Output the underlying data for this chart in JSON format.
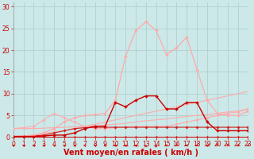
{
  "background_color": "#cce8e8",
  "grid_color": "#aacccc",
  "xlabel": "Vent moyen/en rafales ( km/h )",
  "xlabel_color": "#cc0000",
  "xlabel_fontsize": 7,
  "tick_color": "#cc0000",
  "tick_fontsize": 5.5,
  "ylim": [
    0,
    31
  ],
  "xlim": [
    0,
    23
  ],
  "yticks": [
    0,
    5,
    10,
    15,
    20,
    25,
    30
  ],
  "xticks": [
    0,
    1,
    2,
    3,
    4,
    5,
    6,
    7,
    8,
    9,
    10,
    11,
    12,
    13,
    14,
    15,
    16,
    17,
    18,
    19,
    20,
    21,
    22,
    23
  ],
  "lines": [
    {
      "x": [
        0,
        1,
        2,
        3,
        4,
        5,
        6,
        7,
        8,
        9,
        10,
        11,
        12,
        13,
        14,
        15,
        16,
        17,
        18,
        19,
        20,
        21,
        22,
        23
      ],
      "y": [
        0.2,
        0.2,
        0.2,
        0.2,
        0.2,
        0.2,
        0.2,
        0.2,
        0.2,
        0.2,
        0.2,
        0.2,
        0.2,
        0.2,
        0.2,
        0.2,
        0.2,
        0.2,
        0.2,
        0.2,
        0.2,
        0.2,
        0.2,
        0.2
      ],
      "color": "#dd3333",
      "lw": 0.7,
      "marker": "D",
      "ms": 1.5
    },
    {
      "x": [
        0,
        1,
        2,
        3,
        4,
        5,
        6,
        7,
        8,
        9,
        10,
        11,
        12,
        13,
        14,
        15,
        16,
        17,
        18,
        19,
        20,
        21,
        22,
        23
      ],
      "y": [
        2.0,
        2.0,
        2.0,
        2.1,
        2.2,
        2.3,
        2.4,
        2.5,
        2.6,
        2.8,
        3.0,
        3.2,
        3.5,
        3.8,
        4.0,
        4.2,
        4.5,
        4.8,
        5.0,
        5.2,
        5.5,
        5.8,
        6.0,
        6.5
      ],
      "color": "#ffaaaa",
      "lw": 0.8,
      "marker": null,
      "ms": 0
    },
    {
      "x": [
        0,
        1,
        2,
        3,
        4,
        5,
        6,
        7,
        8,
        9,
        10,
        11,
        12,
        13,
        14,
        15,
        16,
        17,
        18,
        19,
        20,
        21,
        22,
        23
      ],
      "y": [
        0.2,
        0.3,
        0.5,
        0.8,
        1.2,
        1.5,
        2.0,
        2.5,
        3.0,
        3.5,
        4.0,
        4.5,
        5.0,
        5.5,
        6.0,
        6.5,
        7.0,
        7.5,
        8.0,
        8.5,
        9.0,
        9.5,
        10.0,
        10.5
      ],
      "color": "#ffaaaa",
      "lw": 0.8,
      "marker": null,
      "ms": 0
    },
    {
      "x": [
        0,
        1,
        2,
        3,
        4,
        5,
        6,
        7,
        8,
        9,
        10,
        11,
        12,
        13,
        14,
        15,
        16,
        17,
        18,
        19,
        20,
        21,
        22,
        23
      ],
      "y": [
        2.0,
        2.2,
        2.5,
        4.0,
        5.5,
        4.5,
        3.5,
        2.5,
        2.0,
        2.0,
        2.2,
        2.3,
        2.5,
        2.5,
        2.5,
        2.5,
        3.0,
        3.5,
        4.0,
        4.5,
        5.0,
        5.5,
        5.8,
        6.5
      ],
      "color": "#ffaaaa",
      "lw": 0.8,
      "marker": "D",
      "ms": 1.8
    },
    {
      "x": [
        0,
        1,
        2,
        3,
        4,
        5,
        6,
        7,
        8,
        9,
        10,
        11,
        12,
        13,
        14,
        15,
        16,
        17,
        18,
        19,
        20,
        21,
        22,
        23
      ],
      "y": [
        0.2,
        0.2,
        0.3,
        0.5,
        1.0,
        1.5,
        2.0,
        2.2,
        2.3,
        2.3,
        2.3,
        2.3,
        2.3,
        2.3,
        2.3,
        2.3,
        2.3,
        2.3,
        2.3,
        2.3,
        2.3,
        2.3,
        2.3,
        2.3
      ],
      "color": "#cc2222",
      "lw": 0.8,
      "marker": "D",
      "ms": 1.8
    },
    {
      "x": [
        0,
        1,
        2,
        3,
        4,
        5,
        6,
        7,
        8,
        9,
        10,
        11,
        12,
        13,
        14,
        15,
        16,
        17,
        18,
        19,
        20,
        21,
        22,
        23
      ],
      "y": [
        0.2,
        0.3,
        0.5,
        1.0,
        2.0,
        3.5,
        4.5,
        5.0,
        5.2,
        5.5,
        8.5,
        18.5,
        24.5,
        26.5,
        24.5,
        19.0,
        20.5,
        23.0,
        15.5,
        8.5,
        5.5,
        5.0,
        5.0,
        6.0
      ],
      "color": "#ffaaaa",
      "lw": 0.9,
      "marker": "D",
      "ms": 2.0
    },
    {
      "x": [
        0,
        1,
        2,
        3,
        4,
        5,
        6,
        7,
        8,
        9,
        10,
        11,
        12,
        13,
        14,
        15,
        16,
        17,
        18,
        19,
        20,
        21,
        22,
        23
      ],
      "y": [
        0.2,
        0.2,
        0.2,
        0.3,
        0.5,
        0.5,
        1.0,
        2.0,
        2.5,
        2.5,
        8.0,
        7.0,
        8.5,
        9.5,
        9.5,
        6.5,
        6.5,
        8.0,
        8.0,
        3.5,
        1.5,
        1.5,
        1.5,
        1.5
      ],
      "color": "#cc0000",
      "lw": 1.0,
      "marker": "D",
      "ms": 2.0
    }
  ],
  "hline_color": "#cc0000",
  "hline_lw": 1.2,
  "arrow_color": "#cc0000",
  "arrow_directions": [
    225,
    225,
    225,
    225,
    225,
    225,
    225,
    225,
    225,
    225,
    225,
    225,
    225,
    180,
    180,
    270,
    315,
    270,
    270,
    225,
    0,
    0,
    315,
    315
  ]
}
